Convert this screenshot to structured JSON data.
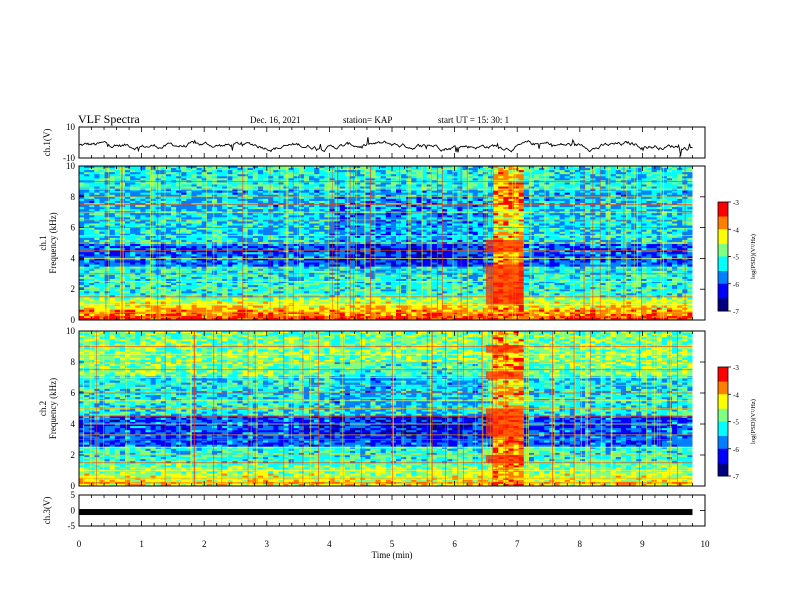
{
  "header": {
    "title": "VLF Spectra",
    "date": "Dec. 16, 2021",
    "station": "station= KAP",
    "start": "start  UT =   15: 30: 1"
  },
  "colors": {
    "colormap": [
      "#000080",
      "#0000ff",
      "#0080ff",
      "#00ffff",
      "#80ff80",
      "#ffff00",
      "#ff8000",
      "#ff0000",
      "#ffffff"
    ],
    "waveform": "#000000",
    "burst": "#ff2000"
  },
  "chart_data": [
    {
      "type": "line",
      "panel": "ch1-waveform",
      "ylabel": "ch.1(V)",
      "ylim": [
        -10,
        10
      ],
      "yticks": [
        "10",
        "-10"
      ],
      "xlim": [
        0,
        10
      ],
      "description_series": "noisy waveform around -2 V with amplitude ~3 V"
    },
    {
      "type": "heatmap",
      "panel": "ch1-spectrogram",
      "ylabel": [
        "ch.1",
        "Frequency (kHz)"
      ],
      "ylim": [
        0,
        10
      ],
      "yticks": [
        "0",
        "2",
        "4",
        "6",
        "8",
        "10"
      ],
      "xlim": [
        0,
        10
      ],
      "colorbar": {
        "label": "log(PSD)(V²/Hz)",
        "ticks": [
          "-3",
          "-4",
          "-5",
          "-6",
          "-7"
        ],
        "range": [
          -7,
          -3
        ]
      },
      "burst_interval_min": [
        6.5,
        7.1
      ],
      "horizontal_line_khz": [
        0.2,
        0.5,
        1.0,
        1.5,
        2.0,
        2.5,
        3.0,
        3.3,
        4.0,
        4.5,
        5.0,
        5.5,
        6.0,
        6.5,
        7.0,
        7.5,
        8.0,
        8.5,
        9.0
      ]
    },
    {
      "type": "heatmap",
      "panel": "ch2-spectrogram",
      "ylabel": [
        "ch.2",
        "Frequency (kHz)"
      ],
      "ylim": [
        0,
        10
      ],
      "yticks": [
        "0",
        "2",
        "4",
        "6",
        "8",
        "10"
      ],
      "xlim": [
        0,
        10
      ],
      "colorbar": {
        "label": "log(PSD)(V²/Hz)",
        "ticks": [
          "-3",
          "-4",
          "-5",
          "-6",
          "-7"
        ],
        "range": [
          -7,
          -3
        ]
      },
      "burst_interval_min": [
        6.5,
        7.1
      ],
      "horizontal_line_khz": [
        0.2,
        0.5,
        1.0,
        1.5,
        2.0,
        2.5,
        3.0,
        3.3,
        4.0,
        4.5,
        5.0,
        5.5,
        6.0,
        6.5,
        7.0,
        7.5,
        8.0,
        8.5,
        9.0
      ]
    },
    {
      "type": "line",
      "panel": "ch3-waveform",
      "ylabel": "ch.3(V)",
      "ylim": [
        -5,
        5
      ],
      "yticks": [
        "5",
        "0",
        "-5"
      ],
      "xlim": [
        0,
        10
      ],
      "level_v": -0.5
    }
  ],
  "xaxis": {
    "label": "Time (min)",
    "ticks": [
      "0",
      "1",
      "2",
      "3",
      "4",
      "5",
      "6",
      "7",
      "8",
      "9",
      "10"
    ]
  }
}
